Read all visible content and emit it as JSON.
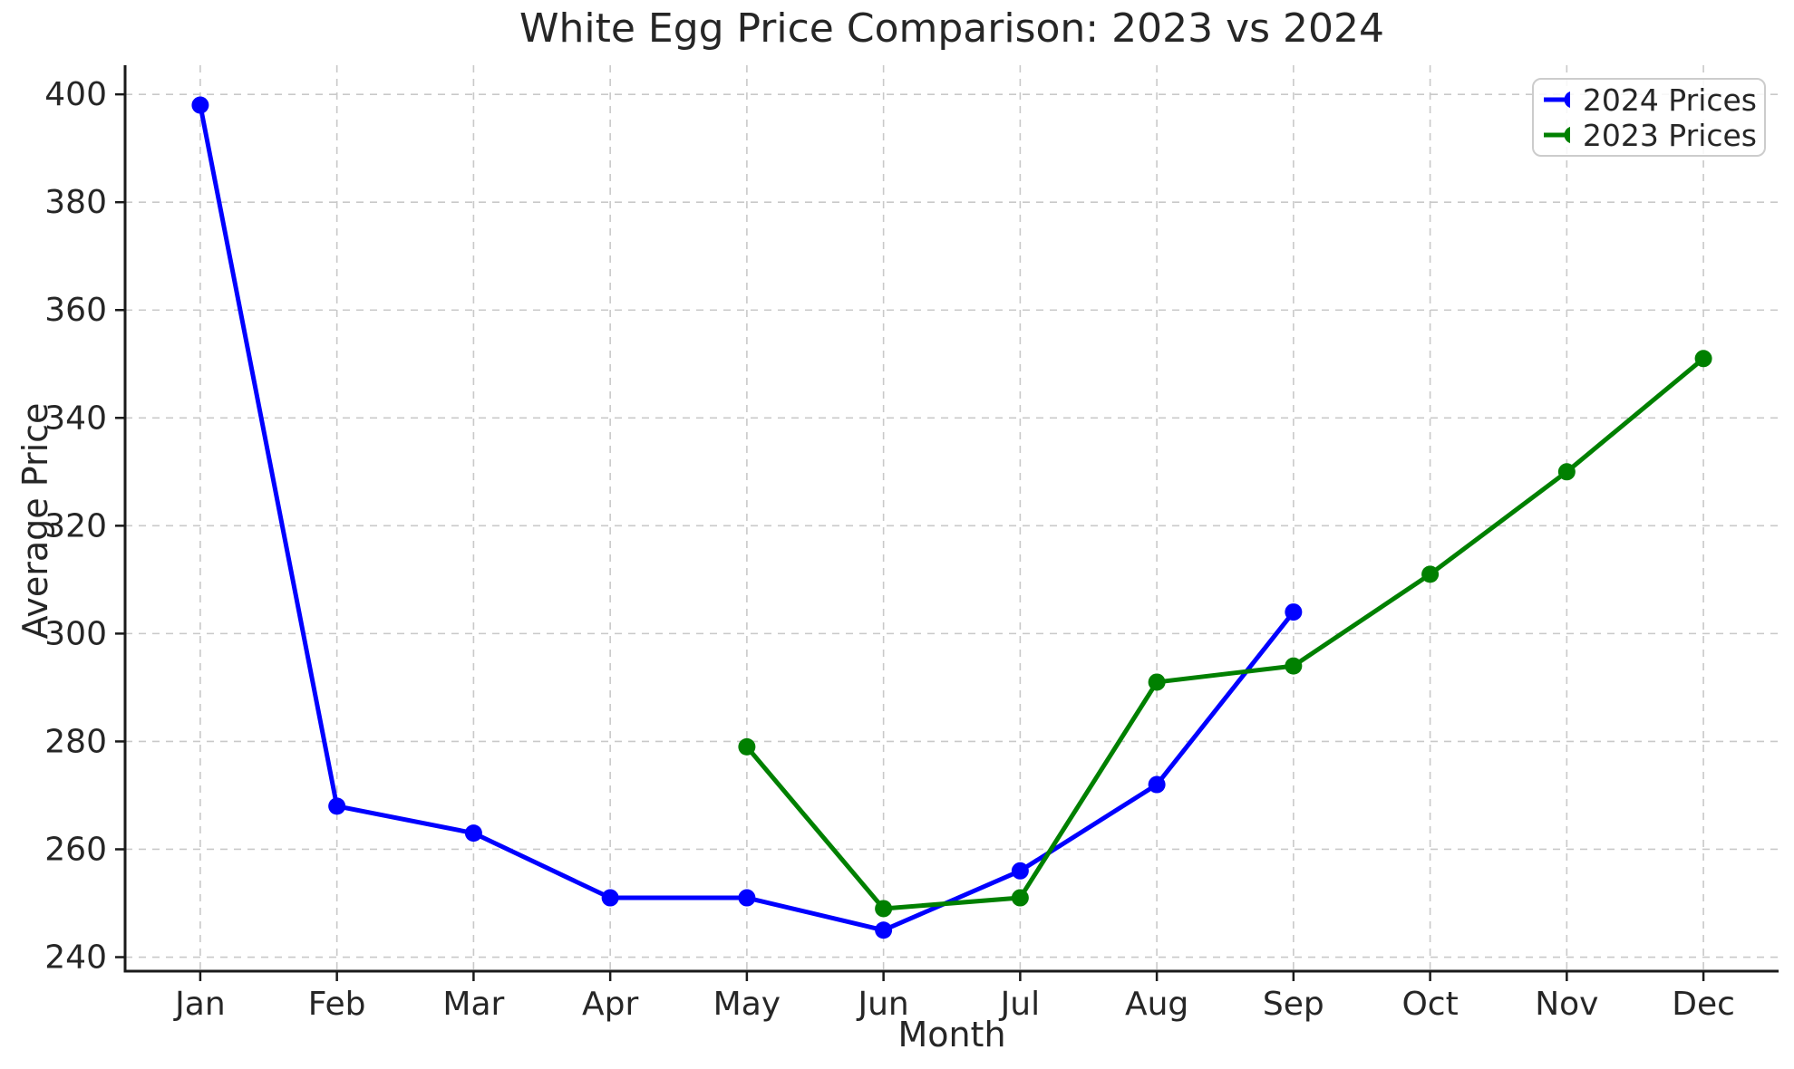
{
  "chart_data": {
    "type": "line",
    "title": "White Egg Price Comparison: 2023 vs 2024",
    "xlabel": "Month",
    "ylabel": "Average Price",
    "categories": [
      "Jan",
      "Feb",
      "Mar",
      "Apr",
      "May",
      "Jun",
      "Jul",
      "Aug",
      "Sep",
      "Oct",
      "Nov",
      "Dec"
    ],
    "series": [
      {
        "name": "2024 Prices",
        "color": "#0000ff",
        "values": [
          398,
          268,
          263,
          251,
          251,
          245,
          256,
          272,
          304,
          null,
          null,
          null
        ]
      },
      {
        "name": "2023 Prices",
        "color": "#008000",
        "values": [
          null,
          null,
          null,
          null,
          279,
          249,
          251,
          291,
          294,
          311,
          330,
          351
        ]
      }
    ],
    "yticks": [
      240,
      260,
      280,
      300,
      320,
      340,
      360,
      380,
      400
    ],
    "ylim": [
      237.4,
      405.4
    ],
    "grid": true,
    "grid_style": "dashed",
    "legend_position": "upper right",
    "colors": {
      "grid": "#c9c9c9",
      "axis": "#1a1a1a",
      "text": "#262626",
      "legend_border": "#cccccc"
    }
  }
}
